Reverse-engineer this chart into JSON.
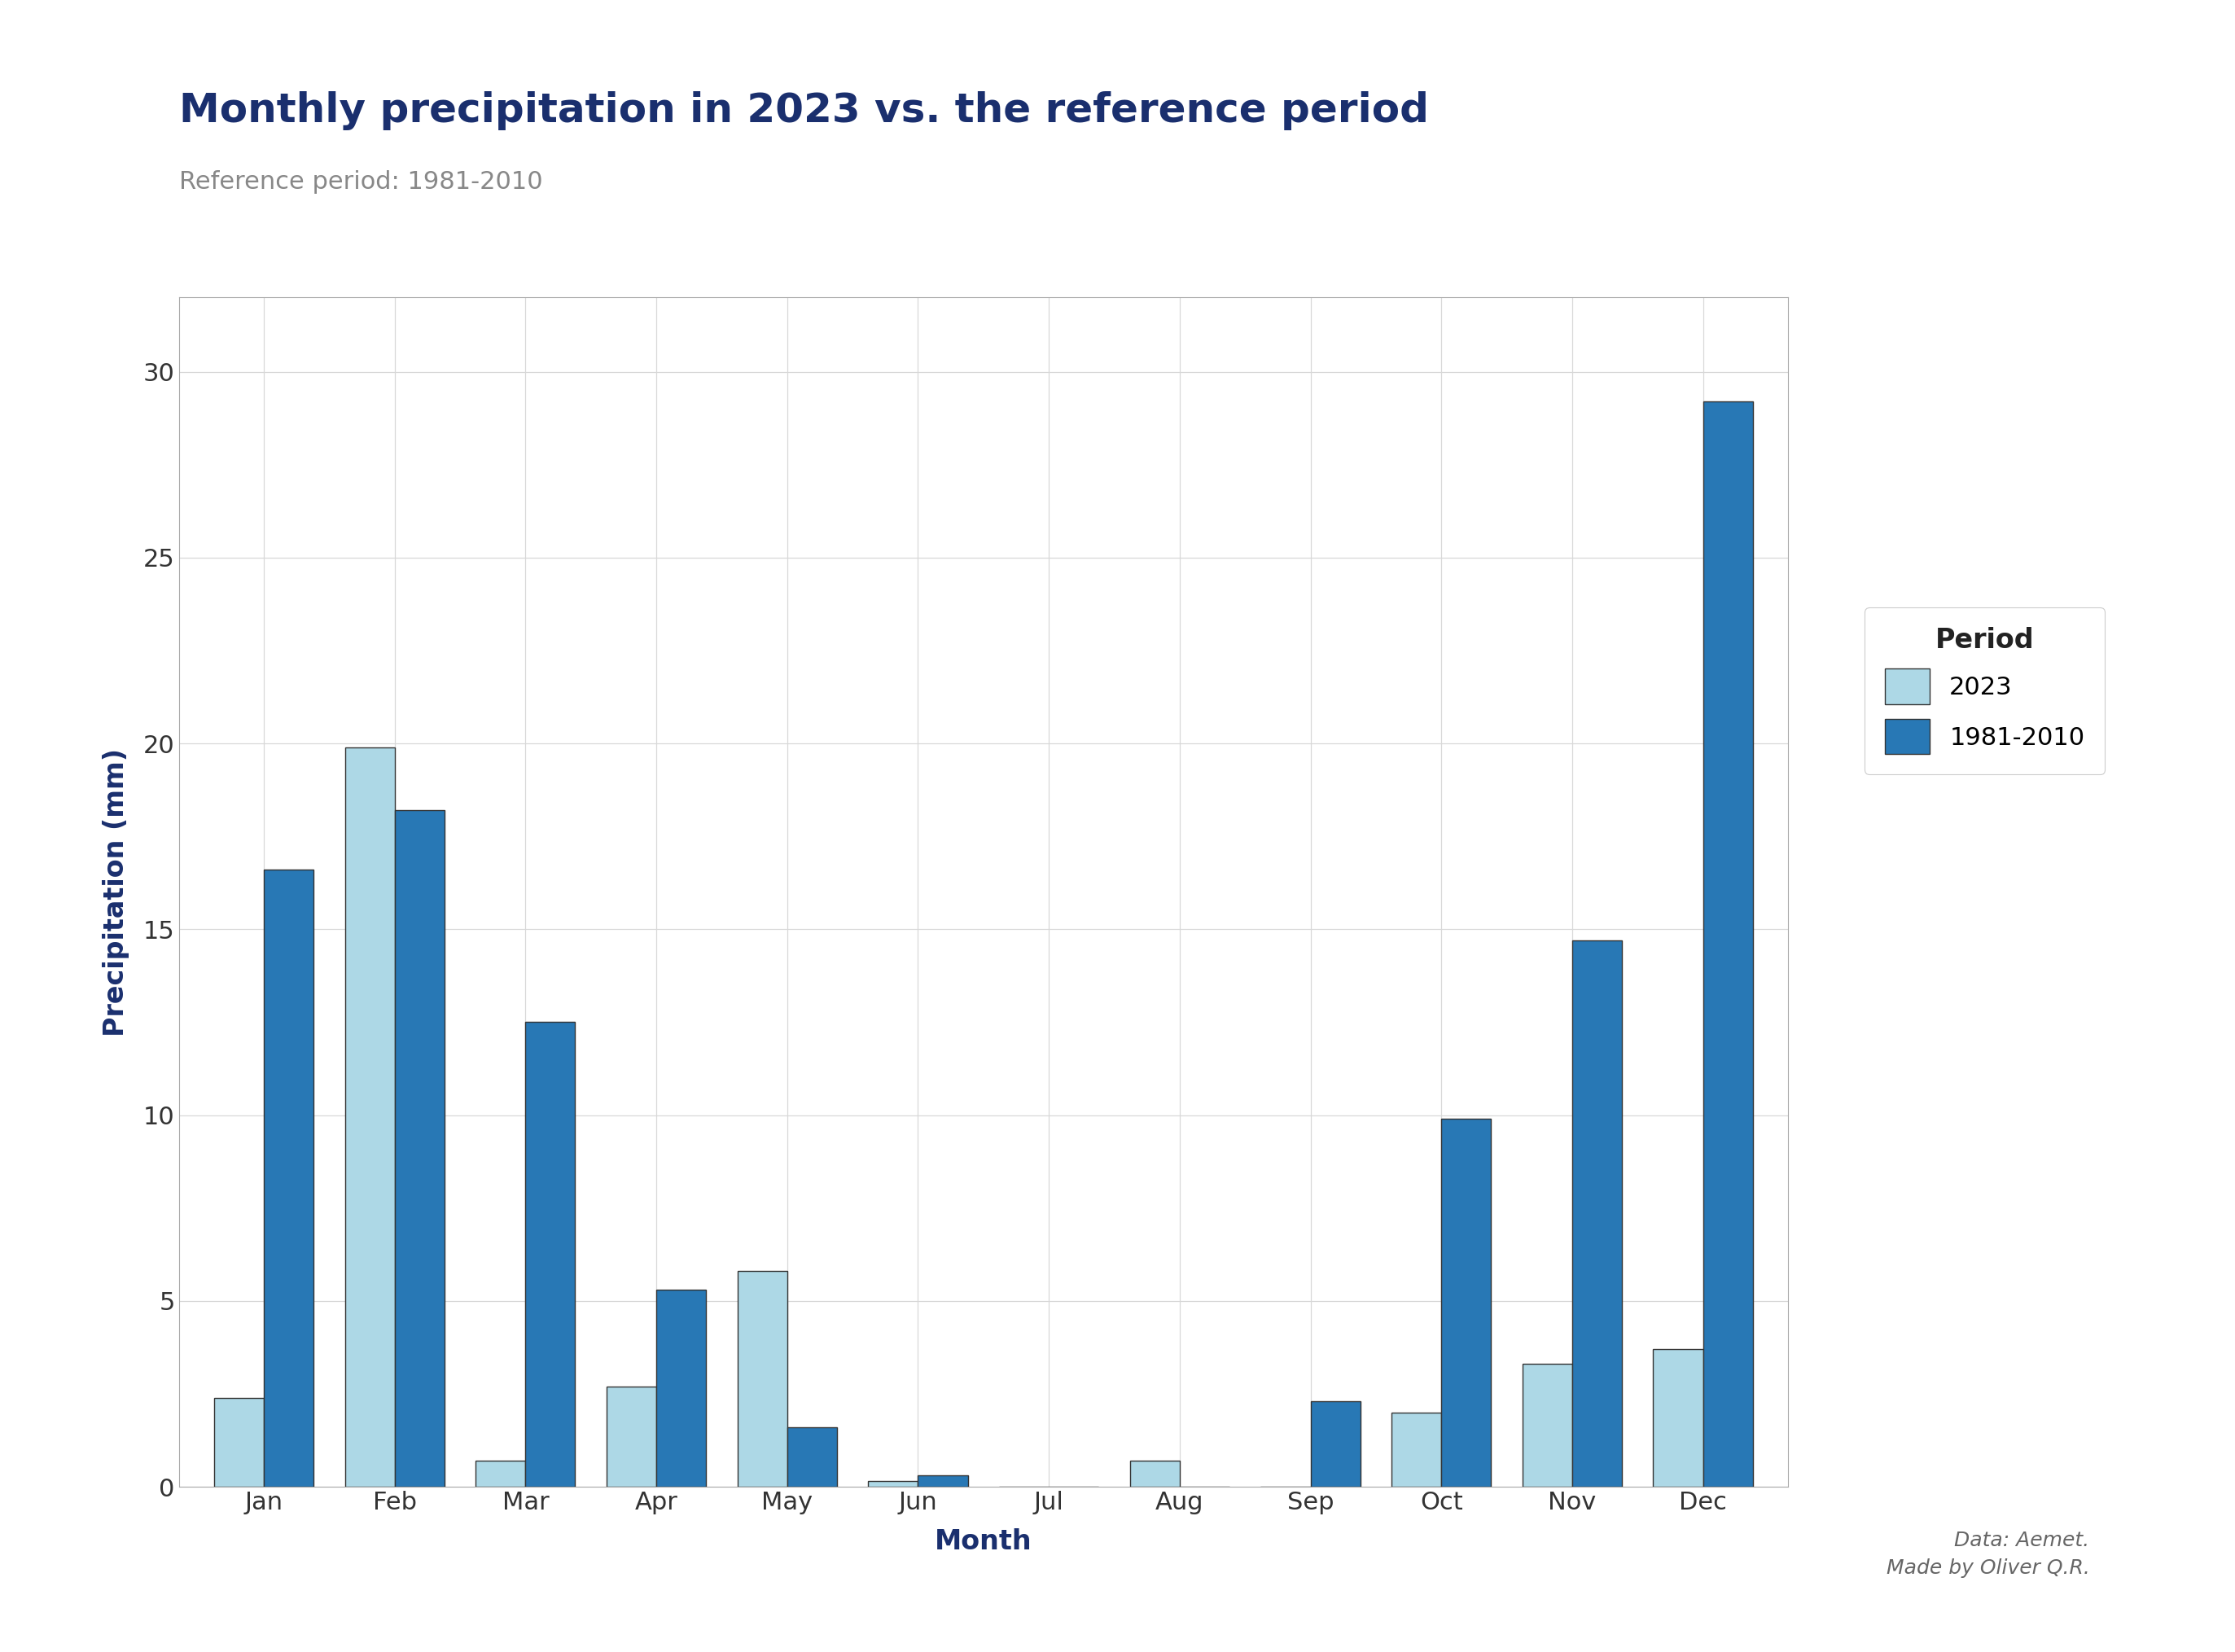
{
  "title": "Monthly precipitation in 2023 vs. the reference period",
  "subtitle": "Reference period: 1981-2010",
  "xlabel": "Month",
  "ylabel": "Precipitation (mm)",
  "months": [
    "Jan",
    "Feb",
    "Mar",
    "Apr",
    "May",
    "Jun",
    "Jul",
    "Aug",
    "Sep",
    "Oct",
    "Nov",
    "Dec"
  ],
  "values_2023": [
    2.4,
    19.9,
    0.7,
    2.7,
    5.8,
    0.15,
    0.0,
    0.7,
    0.0,
    2.0,
    3.3,
    3.7
  ],
  "values_ref": [
    16.6,
    18.2,
    12.5,
    5.3,
    1.6,
    0.3,
    0.0,
    0.0,
    2.3,
    9.9,
    14.7,
    29.2
  ],
  "color_2023": "#add8e6",
  "color_ref": "#2878b5",
  "color_title": "#1a2f6e",
  "color_subtitle": "#888888",
  "color_xlabel": "#1a2f6e",
  "color_ylabel": "#1a2f6e",
  "color_axis_ticks": "#333333",
  "color_grid": "#d8d8d8",
  "background_color": "#ffffff",
  "ylim": [
    0,
    32
  ],
  "yticks": [
    0,
    5,
    10,
    15,
    20,
    25,
    30
  ],
  "bar_width": 0.38,
  "bar_edge_color": "#333333",
  "bar_edge_width": 1.0,
  "legend_title": "Period",
  "legend_labels": [
    "2023",
    "1981-2010"
  ],
  "annotation": "Data: Aemet.\nMade by Oliver Q.R.",
  "title_fontsize": 36,
  "subtitle_fontsize": 22,
  "label_fontsize": 24,
  "tick_fontsize": 22,
  "legend_fontsize": 22,
  "legend_title_fontsize": 24,
  "annotation_fontsize": 18
}
